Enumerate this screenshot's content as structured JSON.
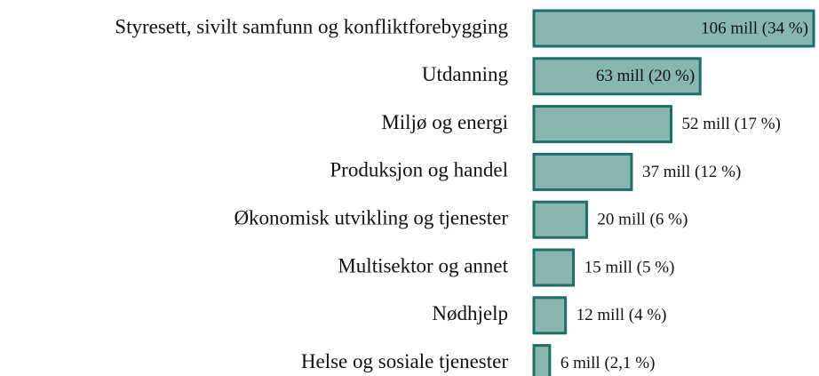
{
  "chart_data": {
    "type": "barh",
    "categories": [
      "Styresett, sivilt samfunn og konfliktforebygging",
      "Utdanning",
      "Miljø og energi",
      "Produksjon og handel",
      "Økonomisk utvikling og tjenester",
      "Multisektor og annet",
      "Nødhjelp",
      "Helse og sosiale tjenester"
    ],
    "values": [
      106,
      63,
      52,
      37,
      20,
      15,
      12,
      6
    ],
    "value_labels": [
      "106 mill (34 %)",
      "63 mill (20 %)",
      "52 mill (17 %)",
      "37 mill (12 %)",
      "20 mill (6 %)",
      "15 mill (5 %)",
      "12 mill (4 %)",
      "6 mill (2,1 %)"
    ],
    "color": "#88b6b0",
    "edge_color": "#1f6e68"
  }
}
